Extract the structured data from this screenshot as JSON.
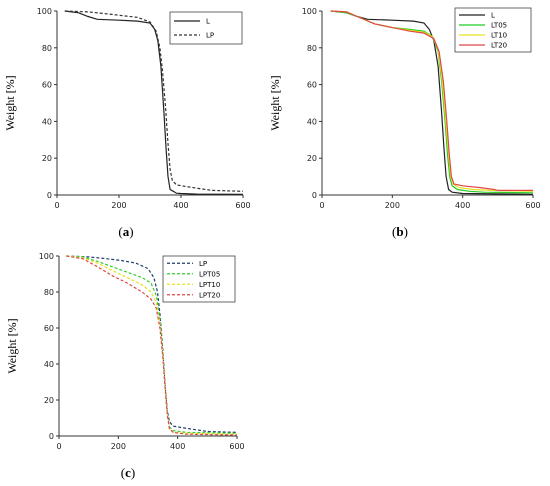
{
  "chart_data": [
    {
      "id": "a",
      "type": "line",
      "caption_letter": "a",
      "ylabel": "Weight [%]",
      "xlabel": "",
      "xlim": [
        0,
        600
      ],
      "ylim": [
        0,
        100
      ],
      "xticks": [
        0,
        200,
        400,
        600
      ],
      "yticks": [
        0,
        20,
        40,
        60,
        80,
        100
      ],
      "legend_position": "top-right",
      "series": [
        {
          "name": "L",
          "color": "#222222",
          "dash": "solid",
          "points": [
            [
              25,
              100
            ],
            [
              70,
              99
            ],
            [
              100,
              97
            ],
            [
              130,
              95.5
            ],
            [
              200,
              95
            ],
            [
              260,
              94.5
            ],
            [
              300,
              93.5
            ],
            [
              315,
              90
            ],
            [
              325,
              84
            ],
            [
              335,
              70
            ],
            [
              345,
              45
            ],
            [
              352,
              25
            ],
            [
              358,
              10
            ],
            [
              365,
              3
            ],
            [
              375,
              2
            ],
            [
              385,
              1
            ],
            [
              400,
              0.8
            ],
            [
              450,
              0.5
            ],
            [
              600,
              0.4
            ]
          ]
        },
        {
          "name": "LP",
          "color": "#333333",
          "dash": "dashed",
          "points": [
            [
              25,
              100
            ],
            [
              100,
              99.5
            ],
            [
              160,
              98.5
            ],
            [
              210,
              97.5
            ],
            [
              260,
              96.5
            ],
            [
              300,
              94
            ],
            [
              320,
              89
            ],
            [
              332,
              80
            ],
            [
              340,
              68
            ],
            [
              350,
              48
            ],
            [
              358,
              28
            ],
            [
              365,
              14
            ],
            [
              372,
              8
            ],
            [
              385,
              5.5
            ],
            [
              420,
              4.5
            ],
            [
              460,
              3.5
            ],
            [
              500,
              2.5
            ],
            [
              600,
              2
            ]
          ]
        }
      ]
    },
    {
      "id": "b",
      "type": "line",
      "caption_letter": "b",
      "ylabel": "Weight [%]",
      "xlabel": "",
      "xlim": [
        0,
        600
      ],
      "ylim": [
        0,
        100
      ],
      "xticks": [
        0,
        200,
        400,
        600
      ],
      "yticks": [
        0,
        20,
        40,
        60,
        80,
        100
      ],
      "legend_position": "top-right",
      "series": [
        {
          "name": "L",
          "color": "#222222",
          "dash": "solid",
          "points": [
            [
              25,
              100
            ],
            [
              70,
              99
            ],
            [
              100,
              97
            ],
            [
              130,
              95.5
            ],
            [
              200,
              95
            ],
            [
              260,
              94.5
            ],
            [
              290,
              93.5
            ],
            [
              305,
              90
            ],
            [
              318,
              84
            ],
            [
              330,
              70
            ],
            [
              340,
              45
            ],
            [
              347,
              25
            ],
            [
              353,
              10
            ],
            [
              360,
              3
            ],
            [
              370,
              1.5
            ],
            [
              400,
              0.8
            ],
            [
              600,
              0.4
            ]
          ]
        },
        {
          "name": "LT05",
          "color": "#22cc22",
          "dash": "solid",
          "points": [
            [
              25,
              100
            ],
            [
              70,
              99
            ],
            [
              100,
              97
            ],
            [
              150,
              93
            ],
            [
              200,
              91
            ],
            [
              250,
              90
            ],
            [
              290,
              89
            ],
            [
              315,
              86
            ],
            [
              330,
              78
            ],
            [
              340,
              62
            ],
            [
              350,
              40
            ],
            [
              357,
              22
            ],
            [
              363,
              10
            ],
            [
              370,
              5
            ],
            [
              385,
              3
            ],
            [
              420,
              2
            ],
            [
              460,
              1.5
            ],
            [
              600,
              1.2
            ]
          ]
        },
        {
          "name": "LT10",
          "color": "#e8e020",
          "dash": "solid",
          "points": [
            [
              25,
              100
            ],
            [
              70,
              99.5
            ],
            [
              100,
              97
            ],
            [
              150,
              93
            ],
            [
              200,
              91
            ],
            [
              250,
              89.5
            ],
            [
              290,
              88.5
            ],
            [
              315,
              86
            ],
            [
              330,
              79
            ],
            [
              342,
              62
            ],
            [
              352,
              40
            ],
            [
              360,
              22
            ],
            [
              366,
              10
            ],
            [
              373,
              6
            ],
            [
              390,
              4
            ],
            [
              430,
              3
            ],
            [
              480,
              2.5
            ],
            [
              600,
              2
            ]
          ]
        },
        {
          "name": "LT20",
          "color": "#e04848",
          "dash": "solid",
          "points": [
            [
              25,
              100
            ],
            [
              70,
              99.5
            ],
            [
              100,
              97
            ],
            [
              150,
              93
            ],
            [
              200,
              91
            ],
            [
              250,
              89
            ],
            [
              290,
              88
            ],
            [
              318,
              85
            ],
            [
              333,
              78
            ],
            [
              345,
              62
            ],
            [
              355,
              40
            ],
            [
              362,
              22
            ],
            [
              368,
              10
            ],
            [
              375,
              6
            ],
            [
              400,
              5
            ],
            [
              450,
              4
            ],
            [
              490,
              3
            ],
            [
              500,
              2.5
            ],
            [
              600,
              2.5
            ]
          ]
        }
      ]
    },
    {
      "id": "c",
      "type": "line",
      "caption_letter": "c",
      "ylabel": "Weight [%]",
      "xlabel": "",
      "xlim": [
        0,
        600
      ],
      "ylim": [
        0,
        100
      ],
      "xticks": [
        0,
        200,
        400,
        600
      ],
      "yticks": [
        0,
        20,
        40,
        60,
        80,
        100
      ],
      "legend_position": "top-right",
      "series": [
        {
          "name": "LP",
          "color": "#1f3f6f",
          "dash": "dashed",
          "points": [
            [
              25,
              100
            ],
            [
              100,
              99.5
            ],
            [
              160,
              98.5
            ],
            [
              210,
              97.5
            ],
            [
              260,
              96
            ],
            [
              300,
              93
            ],
            [
              320,
              88
            ],
            [
              332,
              80
            ],
            [
              340,
              68
            ],
            [
              350,
              48
            ],
            [
              358,
              28
            ],
            [
              365,
              14
            ],
            [
              372,
              8
            ],
            [
              385,
              5.5
            ],
            [
              420,
              4.5
            ],
            [
              460,
              3.5
            ],
            [
              500,
              2.5
            ],
            [
              600,
              2
            ]
          ]
        },
        {
          "name": "LPT05",
          "color": "#33cc33",
          "dash": "dashed",
          "points": [
            [
              25,
              100
            ],
            [
              80,
              99.5
            ],
            [
              130,
              97
            ],
            [
              180,
              94
            ],
            [
              230,
              91
            ],
            [
              280,
              88
            ],
            [
              310,
              85
            ],
            [
              328,
              78
            ],
            [
              340,
              65
            ],
            [
              350,
              46
            ],
            [
              358,
              26
            ],
            [
              365,
              12
            ],
            [
              372,
              5
            ],
            [
              385,
              3
            ],
            [
              430,
              2
            ],
            [
              600,
              1.5
            ]
          ]
        },
        {
          "name": "LPT10",
          "color": "#e8e020",
          "dash": "dashed",
          "points": [
            [
              25,
              100
            ],
            [
              80,
              99
            ],
            [
              130,
              96
            ],
            [
              180,
              92
            ],
            [
              230,
              88
            ],
            [
              280,
              84
            ],
            [
              310,
              80
            ],
            [
              328,
              74
            ],
            [
              340,
              62
            ],
            [
              350,
              45
            ],
            [
              358,
              26
            ],
            [
              365,
              12
            ],
            [
              372,
              4
            ],
            [
              385,
              2
            ],
            [
              430,
              1.5
            ],
            [
              600,
              1
            ]
          ]
        },
        {
          "name": "LPT20",
          "color": "#e04848",
          "dash": "dashed",
          "points": [
            [
              25,
              100
            ],
            [
              80,
              98.5
            ],
            [
              130,
              94
            ],
            [
              180,
              89
            ],
            [
              230,
              85
            ],
            [
              280,
              80
            ],
            [
              310,
              76
            ],
            [
              328,
              71
            ],
            [
              340,
              60
            ],
            [
              350,
              44
            ],
            [
              358,
              26
            ],
            [
              365,
              12
            ],
            [
              372,
              4
            ],
            [
              385,
              2
            ],
            [
              430,
              1
            ],
            [
              600,
              0.5
            ]
          ]
        }
      ]
    }
  ]
}
